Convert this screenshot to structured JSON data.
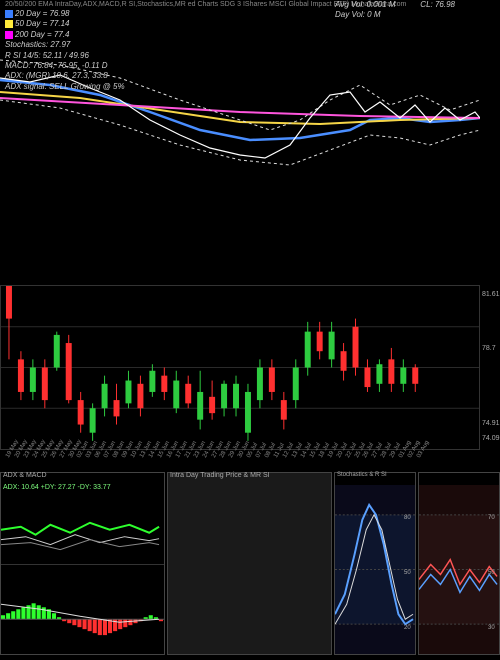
{
  "header": {
    "title_left": "20/50/200 EMA IntraDay,ADX,MACD,R   SI,Stochastics,MR      ed Charts SDG         3            IShares MSCI Global Impact ETF) MunafaSutra.com",
    "line2": {
      "sq_color": "#3a7eff",
      "text": "20  Day = 76.98"
    },
    "line3": {
      "sq_color": "#ffeb3b",
      "text": "50  Day = 77.14"
    },
    "line4": {
      "sq_color": "#ff00ff",
      "text": "200 Day = 77.4"
    },
    "stoch": "Stochastics: 27.97",
    "rsi": "R        SI 14/5: 52.11 / 49.96",
    "macd": "MACD: 76.84, 76.95, -0.11 D",
    "adx": "ADX:                                             (MGR) 10.6,  27.3,  33.8",
    "adxsig": "ADX  signal: SELL Growing @ 5%",
    "cl": "CL: 76.98",
    "avgvol": "Avg Vol: 0.001  M",
    "dayvol": "Day Vol: 0   M"
  },
  "ma_panel": {
    "bg": "#000",
    "series": [
      {
        "name": "ema20",
        "color": "#4a8eff",
        "w": 2.5,
        "pts": [
          [
            0,
            80
          ],
          [
            50,
            85
          ],
          [
            100,
            95
          ],
          [
            150,
            112
          ],
          [
            200,
            130
          ],
          [
            250,
            140
          ],
          [
            300,
            138
          ],
          [
            350,
            130
          ],
          [
            370,
            120
          ],
          [
            400,
            118
          ],
          [
            430,
            122
          ],
          [
            460,
            120
          ],
          [
            480,
            118
          ]
        ]
      },
      {
        "name": "ema50",
        "color": "#f5d547",
        "w": 2,
        "pts": [
          [
            0,
            92
          ],
          [
            80,
            98
          ],
          [
            160,
            110
          ],
          [
            240,
            122
          ],
          [
            320,
            124
          ],
          [
            400,
            120
          ],
          [
            480,
            118
          ]
        ]
      },
      {
        "name": "ema200",
        "color": "#ff55dd",
        "w": 2,
        "pts": [
          [
            0,
            98
          ],
          [
            120,
            105
          ],
          [
            240,
            112
          ],
          [
            360,
            116
          ],
          [
            480,
            118
          ]
        ]
      },
      {
        "name": "upper",
        "color": "#ddd",
        "w": 1,
        "dash": "3,3",
        "pts": [
          [
            0,
            60
          ],
          [
            60,
            65
          ],
          [
            120,
            78
          ],
          [
            180,
            100
          ],
          [
            240,
            120
          ],
          [
            270,
            130
          ],
          [
            300,
            120
          ],
          [
            330,
            100
          ],
          [
            360,
            85
          ],
          [
            390,
            105
          ],
          [
            420,
            95
          ],
          [
            450,
            110
          ],
          [
            480,
            100
          ]
        ]
      },
      {
        "name": "lower",
        "color": "#ddd",
        "w": 1,
        "dash": "3,3",
        "pts": [
          [
            0,
            100
          ],
          [
            60,
            108
          ],
          [
            120,
            125
          ],
          [
            180,
            145
          ],
          [
            240,
            160
          ],
          [
            290,
            165
          ],
          [
            330,
            150
          ],
          [
            370,
            135
          ],
          [
            400,
            138
          ],
          [
            430,
            145
          ],
          [
            460,
            135
          ],
          [
            480,
            130
          ]
        ]
      },
      {
        "name": "price",
        "color": "#fff",
        "w": 1.2,
        "pts": [
          [
            0,
            78
          ],
          [
            30,
            82
          ],
          [
            60,
            75
          ],
          [
            90,
            88
          ],
          [
            120,
            100
          ],
          [
            150,
            120
          ],
          [
            180,
            135
          ],
          [
            210,
            148
          ],
          [
            240,
            155
          ],
          [
            265,
            158
          ],
          [
            290,
            145
          ],
          [
            310,
            118
          ],
          [
            330,
            95
          ],
          [
            350,
            92
          ],
          [
            365,
            112
          ],
          [
            380,
            102
          ],
          [
            400,
            118
          ],
          [
            415,
            105
          ],
          [
            430,
            122
          ],
          [
            445,
            108
          ],
          [
            460,
            120
          ],
          [
            475,
            112
          ],
          [
            480,
            118
          ]
        ]
      }
    ]
  },
  "candle_panel": {
    "y_labels": [
      {
        "v": "81.61",
        "y": 6
      },
      {
        "v": "78.7",
        "y": 60
      },
      {
        "v": "74.91",
        "y": 135
      },
      {
        "v": "74.09",
        "y": 150
      }
    ],
    "grid_color": "#2a2a2a",
    "candles": [
      {
        "x": 5,
        "o": 1.0,
        "c": 0.8,
        "h": 1.0,
        "l": 0.55
      },
      {
        "x": 17,
        "o": 0.55,
        "c": 0.35,
        "h": 0.6,
        "l": 0.3
      },
      {
        "x": 29,
        "o": 0.35,
        "c": 0.5,
        "h": 0.55,
        "l": 0.3
      },
      {
        "x": 41,
        "o": 0.5,
        "c": 0.3,
        "h": 0.55,
        "l": 0.25
      },
      {
        "x": 53,
        "o": 0.5,
        "c": 0.7,
        "h": 0.72,
        "l": 0.48
      },
      {
        "x": 65,
        "o": 0.65,
        "c": 0.3,
        "h": 0.7,
        "l": 0.28
      },
      {
        "x": 77,
        "o": 0.3,
        "c": 0.15,
        "h": 0.35,
        "l": 0.1
      },
      {
        "x": 89,
        "o": 0.1,
        "c": 0.25,
        "h": 0.28,
        "l": 0.05
      },
      {
        "x": 101,
        "o": 0.25,
        "c": 0.4,
        "h": 0.45,
        "l": 0.2
      },
      {
        "x": 113,
        "o": 0.3,
        "c": 0.2,
        "h": 0.4,
        "l": 0.15
      },
      {
        "x": 125,
        "o": 0.28,
        "c": 0.42,
        "h": 0.48,
        "l": 0.25
      },
      {
        "x": 137,
        "o": 0.4,
        "c": 0.25,
        "h": 0.45,
        "l": 0.2
      },
      {
        "x": 149,
        "o": 0.35,
        "c": 0.48,
        "h": 0.52,
        "l": 0.32
      },
      {
        "x": 161,
        "o": 0.45,
        "c": 0.35,
        "h": 0.5,
        "l": 0.3
      },
      {
        "x": 173,
        "o": 0.25,
        "c": 0.42,
        "h": 0.48,
        "l": 0.22
      },
      {
        "x": 185,
        "o": 0.4,
        "c": 0.28,
        "h": 0.45,
        "l": 0.25
      },
      {
        "x": 197,
        "o": 0.18,
        "c": 0.35,
        "h": 0.48,
        "l": 0.12
      },
      {
        "x": 209,
        "o": 0.32,
        "c": 0.22,
        "h": 0.42,
        "l": 0.18
      },
      {
        "x": 221,
        "o": 0.25,
        "c": 0.4,
        "h": 0.42,
        "l": 0.2
      },
      {
        "x": 233,
        "o": 0.25,
        "c": 0.4,
        "h": 0.45,
        "l": 0.2
      },
      {
        "x": 245,
        "o": 0.1,
        "c": 0.35,
        "h": 0.4,
        "l": 0.05
      },
      {
        "x": 257,
        "o": 0.3,
        "c": 0.5,
        "h": 0.55,
        "l": 0.25
      },
      {
        "x": 269,
        "o": 0.5,
        "c": 0.35,
        "h": 0.55,
        "l": 0.3
      },
      {
        "x": 281,
        "o": 0.3,
        "c": 0.18,
        "h": 0.35,
        "l": 0.12
      },
      {
        "x": 293,
        "o": 0.3,
        "c": 0.5,
        "h": 0.55,
        "l": 0.25
      },
      {
        "x": 305,
        "o": 0.5,
        "c": 0.72,
        "h": 0.78,
        "l": 0.45
      },
      {
        "x": 317,
        "o": 0.72,
        "c": 0.6,
        "h": 0.78,
        "l": 0.55
      },
      {
        "x": 329,
        "o": 0.55,
        "c": 0.72,
        "h": 0.78,
        "l": 0.5
      },
      {
        "x": 341,
        "o": 0.6,
        "c": 0.48,
        "h": 0.65,
        "l": 0.42
      },
      {
        "x": 353,
        "o": 0.75,
        "c": 0.5,
        "h": 0.8,
        "l": 0.45
      },
      {
        "x": 365,
        "o": 0.5,
        "c": 0.38,
        "h": 0.55,
        "l": 0.35
      },
      {
        "x": 377,
        "o": 0.4,
        "c": 0.52,
        "h": 0.55,
        "l": 0.35
      },
      {
        "x": 389,
        "o": 0.55,
        "c": 0.4,
        "h": 0.62,
        "l": 0.35
      },
      {
        "x": 401,
        "o": 0.4,
        "c": 0.5,
        "h": 0.55,
        "l": 0.35
      },
      {
        "x": 413,
        "o": 0.5,
        "c": 0.4,
        "h": 0.52,
        "l": 0.35
      }
    ],
    "up_color": "#2ecc40",
    "dn_color": "#ff3030",
    "wick_color": "#999"
  },
  "dates": [
    "19 May",
    "20 May",
    "23 May",
    "24 May",
    "25 May",
    "26 May",
    "27 May",
    "30 May",
    "02 Jun",
    "03 Jun",
    "06 Jun",
    "07 Jun",
    "08 Jun",
    "09 Jun",
    "10 Jun",
    "13 Jun",
    "14 Jun",
    "15 Jun",
    "16 Jun",
    "17 Jun",
    "21 Jun",
    "23 Jun",
    "24 Jun",
    "27 Jun",
    "28 Jun",
    "29 Jun",
    "30 Jun",
    "05 Jul",
    "07 Jul",
    "08 Jul",
    "11 Jul",
    "12 Jul",
    "13 Jul",
    "14 Jul",
    "15 Jul",
    "18 Jul",
    "19 Jul",
    "20 Jul",
    "22 Jul",
    "25 Jul",
    "26 Jul",
    "27 Jul",
    "28 Jul",
    "29 Jul",
    "01 Aug",
    "02 Aug",
    "03 Aug"
  ],
  "adx_panel": {
    "title": "ADX  & MACD",
    "info": "ADX: 10.64   +DY: 27.27 -DY: 33.77",
    "info_color": "#7fff7f",
    "lines": [
      {
        "color": "#2eff2e",
        "w": 2,
        "pts": [
          [
            0,
            45
          ],
          [
            20,
            42
          ],
          [
            35,
            50
          ],
          [
            50,
            40
          ],
          [
            70,
            48
          ],
          [
            90,
            38
          ],
          [
            110,
            45
          ],
          [
            130,
            40
          ],
          [
            150,
            48
          ],
          [
            160,
            42
          ]
        ]
      },
      {
        "color": "#cfcfcf",
        "w": 1,
        "pts": [
          [
            0,
            55
          ],
          [
            25,
            52
          ],
          [
            50,
            60
          ],
          [
            75,
            50
          ],
          [
            100,
            58
          ],
          [
            125,
            52
          ],
          [
            150,
            56
          ],
          [
            160,
            54
          ]
        ]
      },
      {
        "color": "#888",
        "w": 1,
        "pts": [
          [
            0,
            60
          ],
          [
            30,
            58
          ],
          [
            60,
            65
          ],
          [
            90,
            55
          ],
          [
            120,
            62
          ],
          [
            150,
            58
          ],
          [
            160,
            60
          ]
        ]
      }
    ],
    "hist": {
      "color_pos": "#2eff2e",
      "color_neg": "#ff3030",
      "base_y": 135,
      "bars": [
        2,
        3,
        4,
        5,
        6,
        7,
        8,
        7,
        6,
        5,
        3,
        1,
        -1,
        -2,
        -3,
        -4,
        -5,
        -6,
        -7,
        -8,
        -8,
        -7,
        -6,
        -5,
        -4,
        -3,
        -2,
        -1,
        1,
        2,
        1,
        -1
      ]
    },
    "macd_line": {
      "color": "#ddd",
      "pts": [
        [
          0,
          120
        ],
        [
          40,
          125
        ],
        [
          80,
          132
        ],
        [
          120,
          138
        ],
        [
          160,
          135
        ]
      ]
    }
  },
  "intra_panel": {
    "title": "Intra   Day Trading Price  & MR       SI"
  },
  "stoch_panel": {
    "title": "Stochastics & R       SI",
    "bg": "#0a0a1a",
    "y_labels": [
      {
        "v": "80",
        "y": 30
      },
      {
        "v": "50",
        "y": 85
      },
      {
        "v": "20",
        "y": 140
      }
    ],
    "band_fill": "#102040",
    "lines": [
      {
        "color": "#5aa0ff",
        "w": 2,
        "pts": [
          [
            0,
            130
          ],
          [
            10,
            110
          ],
          [
            20,
            70
          ],
          [
            28,
            35
          ],
          [
            35,
            20
          ],
          [
            42,
            30
          ],
          [
            50,
            60
          ],
          [
            58,
            100
          ],
          [
            65,
            130
          ],
          [
            72,
            140
          ],
          [
            80,
            135
          ]
        ]
      },
      {
        "color": "#ddd",
        "w": 1,
        "pts": [
          [
            0,
            140
          ],
          [
            12,
            120
          ],
          [
            22,
            85
          ],
          [
            32,
            45
          ],
          [
            40,
            30
          ],
          [
            48,
            45
          ],
          [
            56,
            80
          ],
          [
            64,
            115
          ],
          [
            72,
            135
          ],
          [
            80,
            130
          ]
        ]
      }
    ]
  },
  "rsi_panel": {
    "bg": "#1a0a0a",
    "y_labels": [
      {
        "v": "70",
        "y": 30
      },
      {
        "v": "50",
        "y": 85
      },
      {
        "v": "30",
        "y": 140
      }
    ],
    "band_fill": "#301818",
    "lines": [
      {
        "color": "#ff5555",
        "w": 1.5,
        "pts": [
          [
            0,
            95
          ],
          [
            12,
            80
          ],
          [
            22,
            90
          ],
          [
            32,
            75
          ],
          [
            42,
            100
          ],
          [
            52,
            85
          ],
          [
            62,
            98
          ],
          [
            72,
            82
          ],
          [
            80,
            92
          ]
        ]
      },
      {
        "color": "#5aa0ff",
        "w": 1.5,
        "pts": [
          [
            0,
            105
          ],
          [
            12,
            90
          ],
          [
            22,
            100
          ],
          [
            32,
            85
          ],
          [
            42,
            108
          ],
          [
            52,
            92
          ],
          [
            62,
            106
          ],
          [
            72,
            90
          ],
          [
            80,
            100
          ]
        ]
      }
    ]
  }
}
